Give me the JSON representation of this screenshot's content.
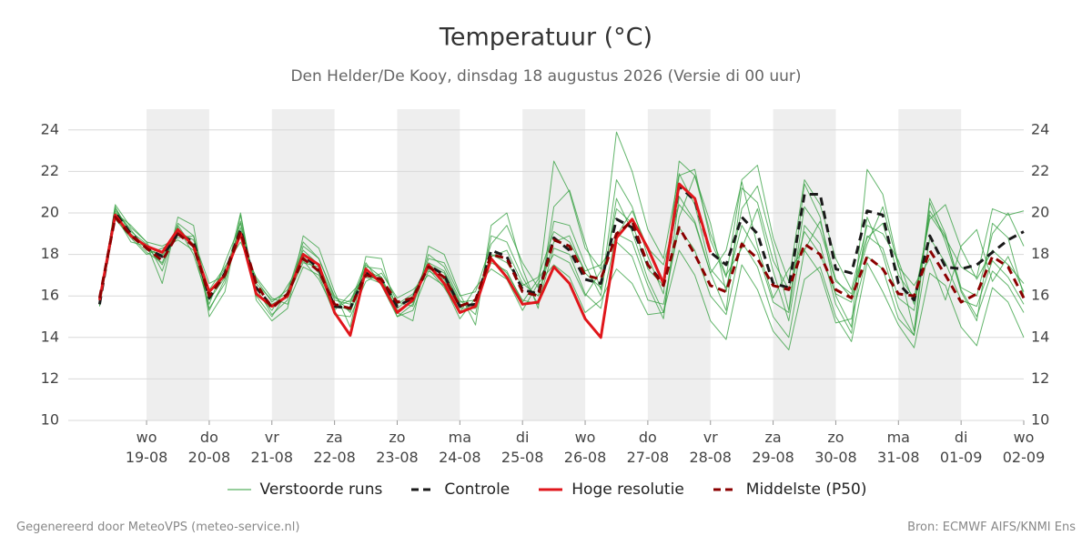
{
  "chart_data": {
    "type": "line",
    "title": "Temperatuur (°C)",
    "subtitle": "Den Helder/De Kooy, dinsdag 18 augustus 2026 (Versie di 00 uur)",
    "categories": [
      null,
      null,
      null,
      "wo\n19-08",
      null,
      null,
      null,
      "do\n20-08",
      null,
      null,
      null,
      "vr\n21-08",
      null,
      null,
      null,
      "za\n22-08",
      null,
      null,
      null,
      "zo\n23-08",
      null,
      null,
      null,
      "ma\n24-08",
      null,
      null,
      null,
      "di\n25-08",
      null,
      null,
      null,
      "wo\n26-08",
      null,
      null,
      null,
      "do\n27-08",
      null,
      null,
      null,
      "vr\n28-08",
      null,
      null,
      null,
      "za\n29-08",
      null,
      null,
      null,
      "zo\n30-08",
      null,
      null,
      null,
      "ma\n31-08",
      null,
      null,
      null,
      "di\n01-09",
      null,
      null,
      null,
      "wo\n02-09"
    ],
    "ylim": [
      10,
      25
    ],
    "yticks": [
      10,
      12,
      14,
      16,
      18,
      20,
      22,
      24
    ],
    "grid": true,
    "weekend_shading": true,
    "series": [
      {
        "name": "Verstoorde runs",
        "color": "#2e9c3a",
        "values": [
          15.5,
          20.4,
          19.3,
          18.6,
          17.2,
          19.5,
          18.9,
          15.3,
          16.8,
          20.0,
          16.0,
          15.0,
          16.2,
          18.6,
          17.8,
          15.9,
          15.7,
          17.6,
          16.5,
          15.0,
          15.6,
          18.0,
          17.4,
          15.8,
          15.1,
          18.9,
          18.6,
          16.9,
          15.6,
          19.6,
          19.4,
          17.5,
          16.0,
          20.7,
          19.1,
          16.8,
          15.2,
          19.8,
          21.8,
          19.0,
          17.0,
          18.3,
          20.2,
          17.2,
          14.8,
          19.4,
          18.5,
          15.6,
          14.2,
          19.8,
          18.0,
          15.4,
          14.1,
          20.5,
          18.6,
          16.3,
          15.0,
          17.2,
          16.5,
          15.2
        ]
      },
      {
        "name": "Verstoorde runs",
        "color": "#2e9c3a",
        "values": [
          15.7,
          19.7,
          18.8,
          18.0,
          18.3,
          18.7,
          18.2,
          16.3,
          17.4,
          18.6,
          16.9,
          15.9,
          15.6,
          17.4,
          17.0,
          15.1,
          15.0,
          16.7,
          17.1,
          15.9,
          16.3,
          17.0,
          16.5,
          14.9,
          15.9,
          17.6,
          17.2,
          15.7,
          16.8,
          18.0,
          17.6,
          16.0,
          17.2,
          18.9,
          20.1,
          18.3,
          17.5,
          20.4,
          19.5,
          17.1,
          18.2,
          21.5,
          18.4,
          15.9,
          17.3,
          18.2,
          19.6,
          16.8,
          15.9,
          18.5,
          20.3,
          17.4,
          16.5,
          17.8,
          15.8,
          18.4,
          19.2,
          16.7,
          17.9,
          16.2
        ]
      },
      {
        "name": "Verstoorde runs",
        "color": "#2e9c3a",
        "values": [
          15.8,
          20.2,
          19.1,
          18.5,
          16.6,
          19.8,
          19.4,
          15.0,
          16.2,
          19.9,
          15.8,
          14.8,
          15.4,
          18.9,
          18.3,
          16.2,
          14.5,
          17.9,
          17.8,
          15.2,
          14.8,
          18.4,
          18.0,
          16.1,
          14.6,
          19.4,
          20.0,
          17.3,
          15.4,
          20.3,
          21.1,
          18.6,
          16.3,
          21.6,
          20.3,
          17.9,
          16.1,
          22.5,
          21.8,
          19.5,
          16.2,
          20.2,
          21.3,
          18.4,
          15.3,
          21.4,
          19.8,
          16.0,
          14.5,
          22.1,
          20.9,
          17.5,
          14.3,
          20.7,
          19.0,
          16.2,
          14.8,
          19.5,
          18.8,
          16.0
        ]
      },
      {
        "name": "Verstoorde runs",
        "color": "#2e9c3a",
        "values": [
          15.6,
          19.9,
          18.6,
          18.4,
          17.5,
          19.3,
          18.0,
          15.6,
          17.6,
          19.5,
          16.2,
          15.3,
          16.5,
          17.7,
          16.8,
          15.3,
          16.1,
          16.9,
          16.6,
          15.4,
          16.0,
          17.3,
          16.4,
          15.2,
          16.4,
          17.3,
          16.8,
          15.3,
          16.6,
          17.5,
          16.9,
          15.2,
          15.8,
          17.3,
          16.6,
          15.1,
          15.2,
          18.2,
          17.0,
          14.8,
          13.9,
          17.5,
          16.3,
          14.3,
          13.4,
          16.8,
          17.4,
          15.0,
          13.8,
          17.6,
          16.2,
          14.6,
          13.5,
          17.1,
          16.5,
          14.5,
          13.6,
          16.4,
          15.7,
          14.0
        ]
      },
      {
        "name": "Verstoorde runs",
        "color": "#2e9c3a",
        "values": [
          15.9,
          20.1,
          19.2,
          18.2,
          18.0,
          19.1,
          18.7,
          16.6,
          17.0,
          18.9,
          16.8,
          15.7,
          16.3,
          18.2,
          17.5,
          15.8,
          15.6,
          17.4,
          17.3,
          15.7,
          15.5,
          17.8,
          17.6,
          16.0,
          16.2,
          18.5,
          19.4,
          17.6,
          16.4,
          22.5,
          21.0,
          18.3,
          17.3,
          23.9,
          22.0,
          19.2,
          17.8,
          21.9,
          20.4,
          17.3,
          16.4,
          19.4,
          18.1,
          15.7,
          15.2,
          20.3,
          19.2,
          16.7,
          16.1,
          18.8,
          19.5,
          17.0,
          15.9,
          19.7,
          20.4,
          18.3,
          16.8,
          18.2,
          17.5,
          16.6
        ]
      },
      {
        "name": "Verstoorde runs",
        "color": "#2e9c3a",
        "values": [
          15.7,
          20.3,
          18.9,
          18.1,
          17.6,
          19.4,
          18.3,
          15.4,
          16.6,
          19.6,
          16.4,
          15.1,
          15.8,
          18.4,
          17.8,
          16.0,
          15.2,
          17.2,
          16.9,
          15.0,
          15.3,
          17.2,
          16.8,
          15.4,
          15.4,
          17.8,
          17.1,
          15.8,
          15.6,
          18.3,
          18.0,
          16.1,
          15.4,
          19.0,
          18.6,
          16.5,
          14.9,
          20.8,
          19.6,
          17.1,
          15.3,
          21.2,
          20.5,
          17.7,
          16.3,
          19.1,
          18.0,
          16.1,
          15.7,
          18.9,
          18.3,
          15.9,
          15.3,
          20.1,
          18.9,
          16.4,
          16.0,
          19.0,
          20.0,
          18.4
        ]
      },
      {
        "name": "Verstoorde runs",
        "color": "#2e9c3a",
        "values": [
          15.6,
          20.0,
          19.4,
          18.6,
          18.4,
          18.8,
          18.9,
          16.1,
          17.3,
          19.0,
          16.6,
          15.8,
          16.1,
          17.9,
          17.1,
          15.4,
          15.8,
          17.0,
          16.7,
          15.6,
          16.1,
          17.6,
          17.2,
          15.7,
          15.8,
          18.0,
          17.6,
          16.5,
          16.9,
          19.1,
          18.6,
          17.2,
          17.5,
          18.6,
          17.9,
          15.8,
          15.6,
          19.3,
          18.2,
          16.0,
          15.1,
          18.6,
          17.4,
          15.0,
          14.0,
          18.2,
          17.1,
          14.7,
          14.9,
          17.9,
          17.3,
          14.9,
          14.1,
          18.8,
          17.6,
          15.8,
          15.5,
          17.7,
          16.9,
          15.6
        ]
      },
      {
        "name": "Verstoorde runs",
        "color": "#2e9c3a",
        "values": [
          15.5,
          19.8,
          19.0,
          18.3,
          17.9,
          19.2,
          18.5,
          15.8,
          16.9,
          19.3,
          16.1,
          15.6,
          16.0,
          17.6,
          17.4,
          15.6,
          15.3,
          17.5,
          16.9,
          15.3,
          15.7,
          17.5,
          17.1,
          15.6,
          15.5,
          17.9,
          18.2,
          16.6,
          16.0,
          18.6,
          18.9,
          17.1,
          16.4,
          20.2,
          19.5,
          17.3,
          16.5,
          21.8,
          22.1,
          18.7,
          16.9,
          21.6,
          22.3,
          18.8,
          16.7,
          21.6,
          20.4,
          17.8,
          16.3,
          19.4,
          19.0,
          17.7,
          15.6,
          19.9,
          18.8,
          17.4,
          16.9,
          20.2,
          19.9,
          20.1
        ]
      },
      {
        "name": "Controle",
        "color": "#1a1a1a",
        "dashed": true,
        "values": [
          15.6,
          20.0,
          19.0,
          18.3,
          17.9,
          19.0,
          18.6,
          15.9,
          17.1,
          19.2,
          16.4,
          15.5,
          16.0,
          18.0,
          17.3,
          15.5,
          15.4,
          17.1,
          16.8,
          15.5,
          15.9,
          17.5,
          17.0,
          15.5,
          15.6,
          18.2,
          17.9,
          16.3,
          16.1,
          18.8,
          18.2,
          16.8,
          16.6,
          19.7,
          19.3,
          17.5,
          16.6,
          21.3,
          20.6,
          18.1,
          17.5,
          19.8,
          19.0,
          16.6,
          16.4,
          20.9,
          20.9,
          17.3,
          17.1,
          20.1,
          19.9,
          16.6,
          15.8,
          18.9,
          17.4,
          17.3,
          17.5,
          18.1,
          18.7,
          19.1
        ]
      },
      {
        "name": "Hoge resolutie",
        "color": "#e0161b",
        "values": [
          15.8,
          19.9,
          18.9,
          18.4,
          18.1,
          19.2,
          18.4,
          16.2,
          17.0,
          19.0,
          16.1,
          15.5,
          16.0,
          18.0,
          17.5,
          15.2,
          14.1,
          17.3,
          16.6,
          15.2,
          15.8,
          17.5,
          16.6,
          15.2,
          15.5,
          17.8,
          16.9,
          15.6,
          15.7,
          17.4,
          16.6,
          14.9,
          14.0,
          18.8,
          19.7,
          18.3,
          16.6,
          21.4,
          20.7,
          18.1,
          null,
          null,
          null,
          null,
          null,
          null,
          null,
          null,
          null,
          null,
          null,
          null,
          null,
          null,
          null,
          null,
          null,
          null,
          null,
          null
        ]
      },
      {
        "name": "Middelste (P50)",
        "color": "#8b0000",
        "dashed": true,
        "values": [
          15.9,
          19.8,
          18.9,
          18.3,
          17.7,
          19.0,
          18.4,
          16.0,
          17.0,
          19.1,
          16.6,
          15.4,
          16.1,
          17.8,
          17.2,
          15.6,
          15.4,
          17.0,
          16.8,
          15.7,
          15.9,
          17.4,
          16.9,
          15.5,
          15.8,
          18.0,
          17.8,
          16.2,
          16.0,
          18.7,
          18.4,
          17.0,
          16.8,
          19.0,
          19.6,
          17.5,
          16.5,
          19.3,
          18.0,
          16.5,
          16.2,
          18.5,
          17.8,
          16.5,
          16.3,
          18.5,
          18.0,
          16.3,
          15.9,
          17.9,
          17.3,
          16.1,
          16.0,
          18.2,
          17.0,
          15.7,
          16.1,
          17.9,
          17.4,
          15.9
        ]
      }
    ]
  },
  "footer_left": "Gegenereerd door MeteoVPS (meteo-service.nl)",
  "footer_right": "Bron: ECMWF AIFS/KNMI Ens"
}
